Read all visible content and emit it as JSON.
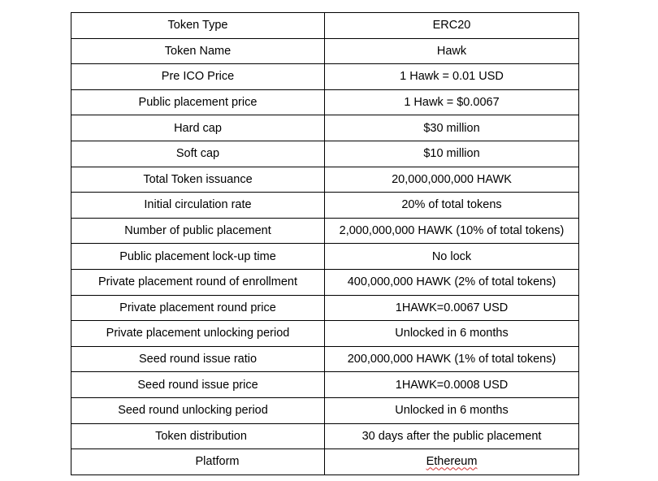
{
  "table": {
    "rows": [
      {
        "label": "Token Type",
        "value": "ERC20"
      },
      {
        "label": "Token Name",
        "value": "Hawk"
      },
      {
        "label": "Pre ICO Price",
        "value": "1 Hawk =  0.01 USD"
      },
      {
        "label": "Public placement price",
        "value": "1 Hawk =  $0.0067"
      },
      {
        "label": "Hard cap",
        "value": "$30 million"
      },
      {
        "label": "Soft cap",
        "value": "$10 million"
      },
      {
        "label": "Total Token issuance",
        "value": "20,000,000,000 HAWK"
      },
      {
        "label": "Initial circulation rate",
        "value": "20% of total tokens"
      },
      {
        "label": "Number of public placement",
        "value": "2,000,000,000 HAWK (10% of total tokens)"
      },
      {
        "label": "Public placement lock-up time",
        "value": "No lock"
      },
      {
        "label": "Private placement round of enrollment",
        "value": "400,000,000 HAWK (2% of total tokens)"
      },
      {
        "label": "Private placement round price",
        "value": "1HAWK=0.0067 USD"
      },
      {
        "label": "Private placement unlocking period",
        "value": "Unlocked in 6 months"
      },
      {
        "label": "Seed round issue ratio",
        "value": "200,000,000 HAWK (1% of total tokens)"
      },
      {
        "label": "Seed round issue price",
        "value": "1HAWK=0.0008 USD"
      },
      {
        "label": "Seed round unlocking period",
        "value": "Unlocked in 6 months"
      },
      {
        "label": "Token distribution",
        "value": "30 days after the public placement"
      },
      {
        "label": "Platform",
        "value": "Ethereum"
      }
    ]
  }
}
